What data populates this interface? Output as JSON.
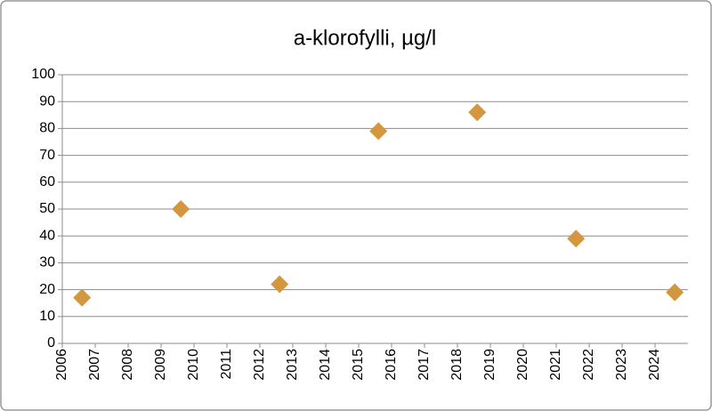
{
  "chart_data": {
    "type": "scatter",
    "title": "a-klorofylli, µg/l",
    "x": [
      2006.6,
      2009.6,
      2012.6,
      2015.6,
      2018.6,
      2021.6,
      2024.6
    ],
    "values": [
      17,
      50,
      22,
      79,
      86,
      39,
      19
    ],
    "color": "#d4963f",
    "xlim": [
      2006,
      2025
    ],
    "xticks": [
      2006,
      2007,
      2008,
      2009,
      2010,
      2011,
      2012,
      2013,
      2014,
      2015,
      2016,
      2017,
      2018,
      2019,
      2020,
      2021,
      2022,
      2023,
      2024
    ],
    "ylim": [
      0,
      100
    ],
    "yticks": [
      0,
      10,
      20,
      30,
      40,
      50,
      60,
      70,
      80,
      90,
      100
    ],
    "grid": true
  }
}
